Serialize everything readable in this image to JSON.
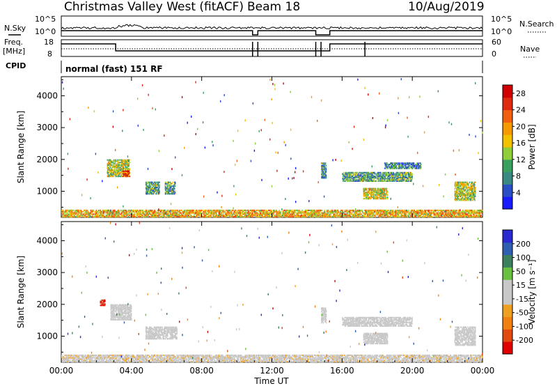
{
  "header": {
    "title": "Christmas Valley West (fitACF)",
    "beam": "Beam 18",
    "date": "10/Aug/2019"
  },
  "panels": {
    "nsky_label": "N.Sky",
    "nsearch_label": "N.Search",
    "nave_label": "Nave",
    "freq_label": "Freq.",
    "freq_unit": "[MHz]",
    "cpid_label": "CPID",
    "mode_text": "normal (fast) 151 RF",
    "noise_left_ticks": [
      "10^5",
      "10^0"
    ],
    "noise_right_ticks": [
      "10^5",
      "10^0"
    ],
    "freq_left_ticks": [
      "18",
      "8"
    ],
    "freq_right_ticks": [
      "60",
      "0"
    ]
  },
  "colors": {
    "power_scale": [
      "#1a1aff",
      "#2a4fc4",
      "#3b8a82",
      "#3aa060",
      "#8fcf3a",
      "#f2c200",
      "#f59a00",
      "#f06010",
      "#e02a10",
      "#d00000"
    ],
    "velocity_scale": [
      "#2a2ad0",
      "#2f5fb0",
      "#3c8060",
      "#6ac040",
      "#c8c8c8",
      "#c8c8c8",
      "#f0a020",
      "#f08010",
      "#e04a10",
      "#e00000"
    ]
  },
  "chart_data": [
    {
      "type": "heatmap",
      "title": "",
      "ylabel": "Slant Range [km]",
      "xlabel": "",
      "x_ticks": [
        "00:00",
        "04:00",
        "08:00",
        "12:00",
        "16:00",
        "20:00",
        "00:00"
      ],
      "y_ticks": [
        "1000",
        "2000",
        "3000",
        "4000"
      ],
      "xlim": [
        0,
        24
      ],
      "ylim": [
        180,
        4600
      ],
      "colorbar": {
        "label": "Power [dB]",
        "ticks": [
          "4",
          "8",
          "12",
          "16",
          "20",
          "24",
          "28"
        ],
        "range": [
          0,
          30
        ]
      },
      "regions": [
        {
          "t": [
            0,
            24
          ],
          "r": [
            180,
            420
          ],
          "value": 18
        },
        {
          "t": [
            2.6,
            3.9
          ],
          "r": [
            1450,
            2000
          ],
          "value": 14
        },
        {
          "t": [
            3.5,
            3.9
          ],
          "r": [
            1450,
            1650
          ],
          "value": 26
        },
        {
          "t": [
            4.8,
            5.6
          ],
          "r": [
            900,
            1300
          ],
          "value": 10
        },
        {
          "t": [
            5.9,
            6.5
          ],
          "r": [
            900,
            1300
          ],
          "value": 10
        },
        {
          "t": [
            14.8,
            15.1
          ],
          "r": [
            1400,
            1900
          ],
          "value": 10
        },
        {
          "t": [
            16.0,
            20.0
          ],
          "r": [
            1300,
            1600
          ],
          "value": 10
        },
        {
          "t": [
            17.2,
            18.6
          ],
          "r": [
            750,
            1100
          ],
          "value": 16
        },
        {
          "t": [
            18.4,
            20.5
          ],
          "r": [
            1700,
            1900
          ],
          "value": 8
        },
        {
          "t": [
            22.4,
            23.6
          ],
          "r": [
            700,
            1300
          ],
          "value": 14
        }
      ]
    },
    {
      "type": "heatmap",
      "title": "",
      "ylabel": "Slant Range [km]",
      "xlabel": "Time UT",
      "x_ticks": [
        "00:00",
        "04:00",
        "08:00",
        "12:00",
        "16:00",
        "20:00",
        "00:00"
      ],
      "y_ticks": [
        "1000",
        "2000",
        "3000",
        "4000"
      ],
      "xlim": [
        0,
        24
      ],
      "ylim": [
        180,
        4600
      ],
      "colorbar": {
        "label": "Velocity [m s⁻¹]",
        "ticks": [
          "200",
          "100",
          "50",
          "15",
          "-15",
          "-50",
          "-100",
          "-200"
        ],
        "range": [
          -250,
          250
        ]
      },
      "regions": [
        {
          "t": [
            0,
            24
          ],
          "r": [
            180,
            420
          ],
          "value": -40
        },
        {
          "t": [
            2.2,
            2.5
          ],
          "r": [
            1950,
            2150
          ],
          "value": -200
        },
        {
          "t": [
            2.8,
            4.0
          ],
          "r": [
            1500,
            2000
          ],
          "value": 0
        },
        {
          "t": [
            4.8,
            6.6
          ],
          "r": [
            900,
            1300
          ],
          "value": 0
        },
        {
          "t": [
            14.8,
            15.1
          ],
          "r": [
            1400,
            1900
          ],
          "value": 0
        },
        {
          "t": [
            16.0,
            20.0
          ],
          "r": [
            1300,
            1600
          ],
          "value": 0
        },
        {
          "t": [
            17.2,
            18.6
          ],
          "r": [
            750,
            1100
          ],
          "value": 0
        },
        {
          "t": [
            22.4,
            23.6
          ],
          "r": [
            700,
            1300
          ],
          "value": 0
        }
      ]
    }
  ]
}
